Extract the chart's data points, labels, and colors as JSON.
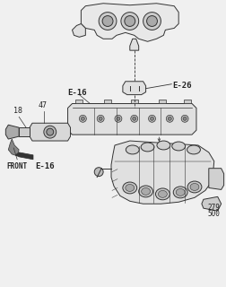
{
  "bg_color": "#f0f0f0",
  "line_color": "#333333",
  "label_color": "#222222",
  "labels": {
    "E26": "E-26",
    "E16_top": "E-16",
    "E16_bottom": "E-16",
    "num47": "47",
    "num18": "18",
    "num279": "279",
    "num500": "500",
    "front": "FRONT"
  },
  "figsize": [
    2.52,
    3.2
  ],
  "dpi": 100
}
